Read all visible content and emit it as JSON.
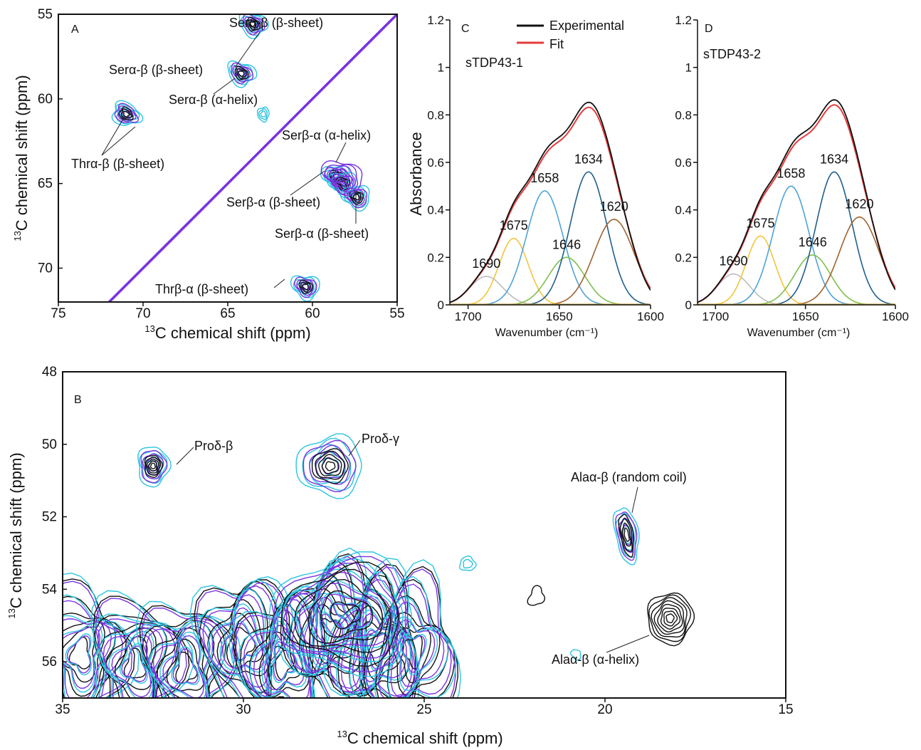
{
  "colors": {
    "black": "#111111",
    "cyan": "#2cc4e0",
    "purple": "#7a33e0",
    "red": "#e53b3b",
    "band_1690": "#bdbdbd",
    "band_1675": "#f2c53d",
    "band_1658": "#4fa3d9",
    "band_1634": "#1f5f8b",
    "band_1646": "#7fbf4d",
    "band_1620": "#a0632d"
  },
  "chart_data": [
    {
      "id": "A",
      "type": "contour",
      "panel_label": "A",
      "xlabel_sup": "13",
      "xlabel": "C chemical shift (ppm)",
      "ylabel_sup": "13",
      "ylabel": "C chemical shift (ppm)",
      "xlim": [
        75,
        55
      ],
      "ylim": [
        72,
        55
      ],
      "xticks": [
        "75",
        "70",
        "65",
        "60",
        "55"
      ],
      "yticks": [
        "55",
        "60",
        "65",
        "70"
      ],
      "peaks": [
        {
          "label": "Serα-β (β-sheet)",
          "x": 63.5,
          "y": 55.6
        },
        {
          "label": "Serα-β (β-sheet)",
          "x": 64.2,
          "y": 58.5
        },
        {
          "label": "Serα-β (α-helix)",
          "x": 64.1,
          "y": 58.6
        },
        {
          "label": "Thrα-β (β-sheet)",
          "x": 71.0,
          "y": 60.9
        },
        {
          "label": "Serβ-α (α-helix)",
          "x": 58.6,
          "y": 64.6
        },
        {
          "label": "Serβ-α (β-sheet)",
          "x": 58.2,
          "y": 65.0
        },
        {
          "label": "Serβ-α (β-sheet)",
          "x": 57.4,
          "y": 65.8
        },
        {
          "label": "Thrβ-α (β-sheet)",
          "x": 60.4,
          "y": 71.1
        }
      ]
    },
    {
      "id": "C",
      "type": "line",
      "panel_label": "C",
      "sample": "sTDP43-1",
      "xlabel": "Wavenumber (cm⁻¹)",
      "ylabel": "Absorbance",
      "xlim": [
        1710,
        1600
      ],
      "ylim": [
        0,
        1.2
      ],
      "xticks": [
        "1700",
        "1650",
        "1600"
      ],
      "yticks": [
        "0",
        "0.2",
        "0.4",
        "0.6",
        "0.8",
        "1",
        "1.2"
      ],
      "legend": [
        "Experimental",
        "Fit"
      ],
      "bands": [
        {
          "center": 1690,
          "label": "1690",
          "height": 0.12,
          "width": 9
        },
        {
          "center": 1675,
          "label": "1675",
          "height": 0.28,
          "width": 8
        },
        {
          "center": 1658,
          "label": "1658",
          "height": 0.48,
          "width": 10
        },
        {
          "center": 1646,
          "label": "1646",
          "height": 0.2,
          "width": 10
        },
        {
          "center": 1634,
          "label": "1634",
          "height": 0.56,
          "width": 10
        },
        {
          "center": 1620,
          "label": "1620",
          "height": 0.36,
          "width": 11
        }
      ]
    },
    {
      "id": "D",
      "type": "line",
      "panel_label": "D",
      "sample": "sTDP43-2",
      "xlabel": "Wavenumber (cm⁻¹)",
      "ylabel": "",
      "xlim": [
        1710,
        1600
      ],
      "ylim": [
        0,
        1.2
      ],
      "xticks": [
        "1700",
        "1650",
        "1600"
      ],
      "yticks": [
        "0",
        "0.2",
        "0.4",
        "0.6",
        "0.8",
        "1",
        "1.2"
      ],
      "bands": [
        {
          "center": 1690,
          "label": "1690",
          "height": 0.13,
          "width": 9
        },
        {
          "center": 1675,
          "label": "1675",
          "height": 0.29,
          "width": 8
        },
        {
          "center": 1658,
          "label": "1658",
          "height": 0.5,
          "width": 10
        },
        {
          "center": 1646,
          "label": "1646",
          "height": 0.21,
          "width": 10
        },
        {
          "center": 1634,
          "label": "1634",
          "height": 0.56,
          "width": 10
        },
        {
          "center": 1620,
          "label": "1620",
          "height": 0.37,
          "width": 11
        }
      ]
    },
    {
      "id": "B",
      "type": "contour",
      "panel_label": "B",
      "xlabel_sup": "13",
      "xlabel": "C chemical shift (ppm)",
      "ylabel_sup": "13",
      "ylabel": "C chemical shift (ppm)",
      "xlim": [
        35,
        15
      ],
      "ylim": [
        57,
        48
      ],
      "xticks": [
        "35",
        "30",
        "25",
        "20",
        "15"
      ],
      "yticks": [
        "48",
        "50",
        "52",
        "54",
        "56"
      ],
      "peaks": [
        {
          "label": "Proδ-β",
          "x": 32.5,
          "y": 50.6
        },
        {
          "label": "Proδ-γ",
          "x": 27.6,
          "y": 50.6
        },
        {
          "label": "Alaα-β (random coil)",
          "x": 19.4,
          "y": 52.5
        },
        {
          "label": "Alaα-β (α-helix)",
          "x": 18.2,
          "y": 54.8
        }
      ]
    }
  ]
}
